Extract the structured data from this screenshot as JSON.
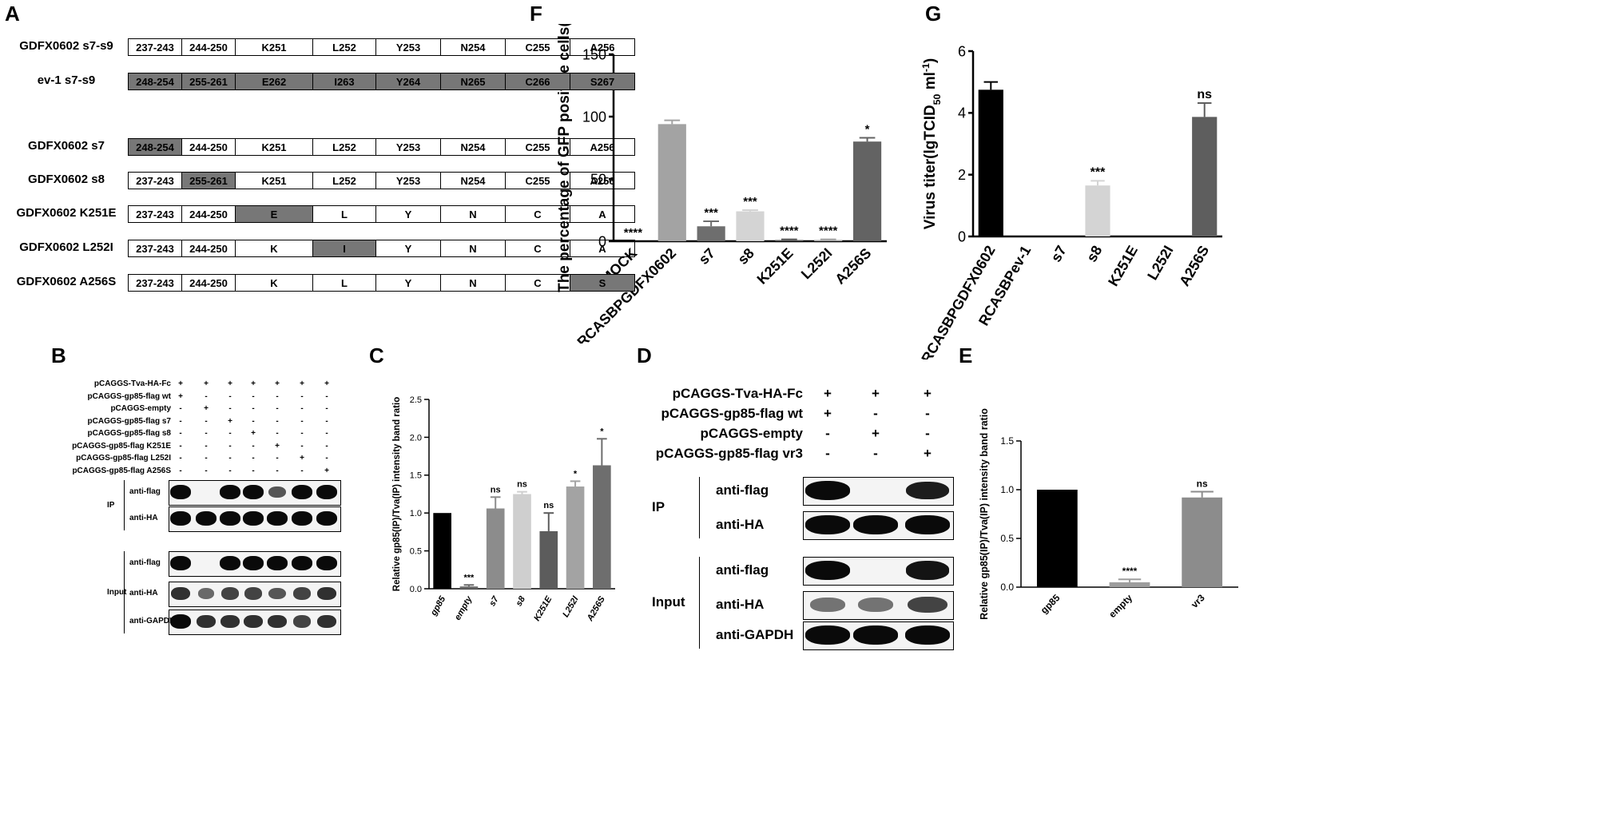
{
  "panels": {
    "A": "A",
    "B": "B",
    "C": "C",
    "D": "D",
    "E": "E",
    "F": "F",
    "G": "G"
  },
  "panel_a": {
    "rows": [
      {
        "name": "GDFX0602 s7-s9",
        "cells": [
          {
            "t": "237-243",
            "g": false
          },
          {
            "t": "244-250",
            "g": false
          },
          {
            "t": "K251",
            "g": false
          },
          {
            "t": "L252",
            "g": false
          },
          {
            "t": "Y253",
            "g": false
          },
          {
            "t": "N254",
            "g": false
          },
          {
            "t": "C255",
            "g": false
          },
          {
            "t": "A256",
            "g": false
          }
        ]
      },
      {
        "name": "ev-1 s7-s9",
        "cells": [
          {
            "t": "248-254",
            "g": true
          },
          {
            "t": "255-261",
            "g": true
          },
          {
            "t": "E262",
            "g": true
          },
          {
            "t": "I263",
            "g": true
          },
          {
            "t": "Y264",
            "g": true
          },
          {
            "t": "N265",
            "g": true
          },
          {
            "t": "C266",
            "g": true
          },
          {
            "t": "S267",
            "g": true
          }
        ]
      },
      {
        "name": "GDFX0602 s7",
        "cells": [
          {
            "t": "248-254",
            "g": true
          },
          {
            "t": "244-250",
            "g": false
          },
          {
            "t": "K251",
            "g": false
          },
          {
            "t": "L252",
            "g": false
          },
          {
            "t": "Y253",
            "g": false
          },
          {
            "t": "N254",
            "g": false
          },
          {
            "t": "C255",
            "g": false
          },
          {
            "t": "A256",
            "g": false
          }
        ]
      },
      {
        "name": "GDFX0602 s8",
        "cells": [
          {
            "t": "237-243",
            "g": false
          },
          {
            "t": "255-261",
            "g": true
          },
          {
            "t": "K251",
            "g": false
          },
          {
            "t": "L252",
            "g": false
          },
          {
            "t": "Y253",
            "g": false
          },
          {
            "t": "N254",
            "g": false
          },
          {
            "t": "C255",
            "g": false
          },
          {
            "t": "A256",
            "g": false
          }
        ]
      },
      {
        "name": "GDFX0602 K251E",
        "cells": [
          {
            "t": "237-243",
            "g": false
          },
          {
            "t": "244-250",
            "g": false
          },
          {
            "t": "E",
            "g": true
          },
          {
            "t": "L",
            "g": false
          },
          {
            "t": "Y",
            "g": false
          },
          {
            "t": "N",
            "g": false
          },
          {
            "t": "C",
            "g": false
          },
          {
            "t": "A",
            "g": false
          }
        ]
      },
      {
        "name": "GDFX0602 L252I",
        "cells": [
          {
            "t": "237-243",
            "g": false
          },
          {
            "t": "244-250",
            "g": false
          },
          {
            "t": "K",
            "g": false
          },
          {
            "t": "I",
            "g": true
          },
          {
            "t": "Y",
            "g": false
          },
          {
            "t": "N",
            "g": false
          },
          {
            "t": "C",
            "g": false
          },
          {
            "t": "A",
            "g": false
          }
        ]
      },
      {
        "name": "GDFX0602 A256S",
        "cells": [
          {
            "t": "237-243",
            "g": false
          },
          {
            "t": "244-250",
            "g": false
          },
          {
            "t": "K",
            "g": false
          },
          {
            "t": "L",
            "g": false
          },
          {
            "t": "Y",
            "g": false
          },
          {
            "t": "N",
            "g": false
          },
          {
            "t": "C",
            "g": false
          },
          {
            "t": "S",
            "g": true
          }
        ]
      }
    ]
  },
  "panel_b": {
    "conditions": [
      {
        "label": "pCAGGS-Tva-HA-Fc",
        "signs": [
          "+",
          "+",
          "+",
          "+",
          "+",
          "+",
          "+"
        ]
      },
      {
        "label": "pCAGGS-gp85-flag wt",
        "signs": [
          "+",
          "-",
          "-",
          "-",
          "-",
          "-",
          "-"
        ]
      },
      {
        "label": "pCAGGS-empty",
        "signs": [
          "-",
          "+",
          "-",
          "-",
          "-",
          "-",
          "-"
        ]
      },
      {
        "label": "pCAGGS-gp85-flag s7",
        "signs": [
          "-",
          "-",
          "+",
          "-",
          "-",
          "-",
          "-"
        ]
      },
      {
        "label": "pCAGGS-gp85-flag s8",
        "signs": [
          "-",
          "-",
          "-",
          "+",
          "-",
          "-",
          "-"
        ]
      },
      {
        "label": "pCAGGS-gp85-flag K251E",
        "signs": [
          "-",
          "-",
          "-",
          "-",
          "+",
          "-",
          "-"
        ]
      },
      {
        "label": "pCAGGS-gp85-flag L252I",
        "signs": [
          "-",
          "-",
          "-",
          "-",
          "-",
          "+",
          "-"
        ]
      },
      {
        "label": "pCAGGS-gp85-flag A256S",
        "signs": [
          "-",
          "-",
          "-",
          "-",
          "-",
          "-",
          "+"
        ]
      }
    ],
    "group_ip": "IP",
    "group_input": "Input",
    "blots": [
      {
        "label": "anti-flag",
        "group": "IP",
        "bands": [
          1,
          0,
          1,
          1,
          0.6,
          1,
          1
        ]
      },
      {
        "label": "anti-HA",
        "group": "IP",
        "bands": [
          1,
          1,
          1,
          1,
          1,
          1,
          1
        ]
      },
      {
        "label": "anti-flag",
        "group": "Input",
        "bands": [
          1,
          0,
          1,
          1,
          1,
          1,
          1
        ]
      },
      {
        "label": "anti-HA",
        "group": "Input",
        "bands": [
          0.8,
          0.5,
          0.7,
          0.7,
          0.6,
          0.7,
          0.8
        ]
      },
      {
        "label": "anti-GAPDH",
        "group": "Input",
        "bands": [
          1,
          0.8,
          0.8,
          0.8,
          0.8,
          0.7,
          0.8
        ]
      }
    ]
  },
  "panel_d": {
    "conditions": [
      {
        "label": "pCAGGS-Tva-HA-Fc",
        "signs": [
          "+",
          "+",
          "+"
        ]
      },
      {
        "label": "pCAGGS-gp85-flag wt",
        "signs": [
          "+",
          "-",
          "-"
        ]
      },
      {
        "label": "pCAGGS-empty",
        "signs": [
          "-",
          "+",
          "-"
        ]
      },
      {
        "label": "pCAGGS-gp85-flag vr3",
        "signs": [
          "-",
          "-",
          "+"
        ]
      }
    ],
    "group_ip": "IP",
    "group_input": "Input",
    "blots": [
      {
        "label": "anti-flag",
        "group": "IP",
        "bands": [
          1,
          0,
          0.9
        ]
      },
      {
        "label": "anti-HA",
        "group": "IP",
        "bands": [
          1,
          1,
          1
        ]
      },
      {
        "label": "anti-flag",
        "group": "Input",
        "bands": [
          1,
          0,
          0.95
        ]
      },
      {
        "label": "anti-HA",
        "group": "Input",
        "bands": [
          0.45,
          0.45,
          0.7
        ]
      },
      {
        "label": "anti-GAPDH",
        "group": "Input",
        "bands": [
          1,
          1,
          1
        ]
      }
    ]
  },
  "chart_data": [
    {
      "panel": "C",
      "type": "bar",
      "ylabel": "Relative gp85(IP)/Tva(IP) intensity band ratio",
      "ylim": [
        0,
        2.5
      ],
      "yticks": [
        "0.0",
        "0.5",
        "1.0",
        "1.5",
        "2.0",
        "2.5"
      ],
      "categories": [
        "gp85",
        "empty",
        "s7",
        "s8",
        "K251E",
        "L252I",
        "A256S"
      ],
      "values": [
        1.0,
        0.03,
        1.06,
        1.25,
        0.76,
        1.35,
        1.63
      ],
      "errors": [
        0,
        0.02,
        0.15,
        0.03,
        0.24,
        0.07,
        0.35
      ],
      "significance": [
        "",
        "***",
        "ns",
        "ns",
        "ns",
        "*",
        "*"
      ],
      "colors": [
        "#000000",
        "#6a6a6a",
        "#8c8c8c",
        "#cfcfcf",
        "#5c5c5c",
        "#a3a3a3",
        "#6e6e6e"
      ]
    },
    {
      "panel": "E",
      "type": "bar",
      "ylabel": "Relative gp85(IP)/Tva(IP) intensity band ratio",
      "ylim": [
        0,
        1.5
      ],
      "yticks": [
        "0.0",
        "0.5",
        "1.0",
        "1.5"
      ],
      "categories": [
        "gp85",
        "empty",
        "vr3"
      ],
      "values": [
        1.0,
        0.05,
        0.92
      ],
      "errors": [
        0,
        0.03,
        0.06
      ],
      "significance": [
        "",
        "****",
        "ns"
      ],
      "colors": [
        "#000000",
        "#9d9d9d",
        "#8c8c8c"
      ]
    },
    {
      "panel": "F",
      "type": "bar",
      "ylabel": "The percentage of GFP positive cells(%)",
      "ylim": [
        0,
        150
      ],
      "yticks": [
        "0",
        "50",
        "100",
        "150"
      ],
      "categories": [
        "MOCK",
        "RCASBPGDFX0602",
        "s7",
        "s8",
        "K251E",
        "L252I",
        "A256S"
      ],
      "values": [
        0,
        94,
        12,
        24,
        1,
        1,
        80
      ],
      "errors": [
        0,
        3,
        4,
        1,
        0.5,
        0.5,
        3
      ],
      "significance": [
        "****",
        "",
        "***",
        "***",
        "****",
        "****",
        "*"
      ],
      "colors": [
        "#000000",
        "#a3a3a3",
        "#6e6e6e",
        "#d4d4d4",
        "#5e5e5e",
        "#a6a6a6",
        "#636363"
      ]
    },
    {
      "panel": "G",
      "type": "bar",
      "ylabel_parts": [
        "Virus titer(lgTCID",
        "50",
        " ml",
        "-1",
        ")"
      ],
      "ylim": [
        0,
        6
      ],
      "yticks": [
        "0",
        "2",
        "4",
        "6"
      ],
      "categories": [
        "RCASBPGDFX0602",
        "RCASBPev-1",
        "s7",
        "s8",
        "K251E",
        "L252I",
        "A256S"
      ],
      "values": [
        4.75,
        0,
        0,
        1.65,
        0,
        0,
        3.87
      ],
      "errors": [
        0.25,
        0,
        0,
        0.15,
        0,
        0,
        0.45
      ],
      "significance": [
        "",
        "",
        "",
        "***",
        "",
        "",
        "ns"
      ],
      "colors": [
        "#000000",
        "#8a8a8a",
        "#8a8a8a",
        "#d4d4d4",
        "#8a8a8a",
        "#8a8a8a",
        "#5e5e5e"
      ]
    }
  ]
}
